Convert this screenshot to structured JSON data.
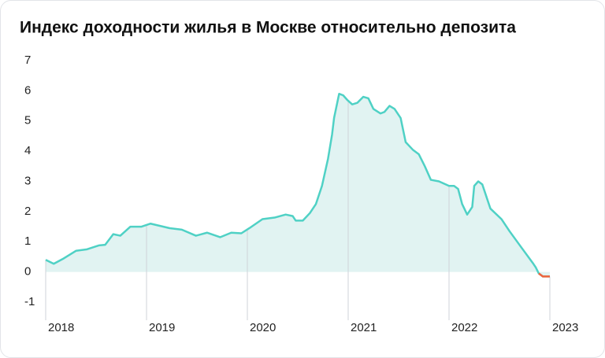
{
  "chart_data": {
    "type": "area-line",
    "title": "Индекс доходности жилья в Москве относительно депозита",
    "x": [
      2018.0,
      2018.08,
      2018.18,
      2018.3,
      2018.41,
      2018.53,
      2018.59,
      2018.67,
      2018.74,
      2018.84,
      2018.95,
      2019.04,
      2019.23,
      2019.35,
      2019.49,
      2019.6,
      2019.73,
      2019.84,
      2019.94,
      2020.02,
      2020.15,
      2020.27,
      2020.38,
      2020.45,
      2020.48,
      2020.55,
      2020.62,
      2020.68,
      2020.74,
      2020.8,
      2020.84,
      2020.86,
      2020.91,
      2020.95,
      2020.99,
      2021.04,
      2021.09,
      2021.15,
      2021.2,
      2021.25,
      2021.32,
      2021.36,
      2021.41,
      2021.46,
      2021.52,
      2021.57,
      2021.64,
      2021.7,
      2021.76,
      2021.82,
      2021.9,
      2022.0,
      2022.05,
      2022.09,
      2022.13,
      2022.18,
      2022.23,
      2022.25,
      2022.29,
      2022.33,
      2022.37,
      2022.41,
      2022.52,
      2022.6,
      2022.72,
      2022.83,
      2022.86,
      2022.89,
      2022.93,
      2023.0
    ],
    "values": [
      0.4,
      0.27,
      0.45,
      0.7,
      0.75,
      0.88,
      0.9,
      1.25,
      1.2,
      1.5,
      1.5,
      1.6,
      1.45,
      1.4,
      1.2,
      1.3,
      1.15,
      1.3,
      1.28,
      1.45,
      1.75,
      1.8,
      1.9,
      1.85,
      1.7,
      1.7,
      1.95,
      2.25,
      2.85,
      3.75,
      4.55,
      5.1,
      5.9,
      5.85,
      5.7,
      5.55,
      5.6,
      5.8,
      5.75,
      5.4,
      5.25,
      5.3,
      5.5,
      5.4,
      5.1,
      4.3,
      4.05,
      3.9,
      3.5,
      3.05,
      3.0,
      2.85,
      2.85,
      2.75,
      2.25,
      1.9,
      2.15,
      2.85,
      3.0,
      2.9,
      2.5,
      2.1,
      1.75,
      1.35,
      0.8,
      0.3,
      0.15,
      -0.05,
      -0.15,
      -0.15
    ],
    "color": "#4fd1c5",
    "fill_color": "#e1f3f2",
    "negative_color": "#f0643c",
    "xlim": [
      2018,
      2023
    ],
    "xticks": [
      2018,
      2019,
      2020,
      2021,
      2022,
      2023
    ],
    "ylim": [
      -1,
      7
    ],
    "yticks": [
      -1,
      0,
      1,
      2,
      3,
      4,
      5,
      6,
      7
    ]
  }
}
